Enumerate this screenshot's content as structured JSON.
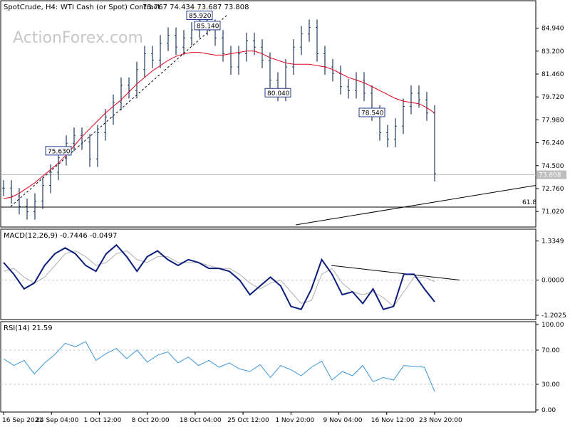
{
  "header": {
    "symbol": "SpotCrude, H4:",
    "description": "WTI Cash (or Spot) Contract",
    "ohlc": "73.767 74.434 73.687 73.808"
  },
  "watermark": "ActionForex.com",
  "colors": {
    "price_bars": "#1f3a5f",
    "sma": "#e0001b",
    "macd": "#0b1c7a",
    "signal": "#b0b0b0",
    "rsi": "#3a96d8",
    "grid": "#c8c8c8",
    "text": "#000000",
    "label_border": "#1f3a8a"
  },
  "chart_data": [
    {
      "type": "bar",
      "panel": "price",
      "ylim": [
        70.0,
        86.0
      ],
      "yticks": [
        "84.940",
        "83.200",
        "81.460",
        "79.720",
        "77.980",
        "76.240",
        "74.500",
        "72.760",
        "71.020"
      ],
      "current_price_label": "73.808",
      "fib_label": "61.8",
      "fib_level": 71.35,
      "series": [
        {
          "name": "",
          "values": [
            72.8,
            72.2,
            71.4,
            71.0,
            71.8,
            73.0,
            74.0,
            75.1,
            76.2,
            76.8,
            76.3,
            75.0,
            77.0,
            78.2,
            79.3,
            80.6,
            80.2,
            81.8,
            83.0,
            82.5,
            83.8,
            84.4,
            83.5,
            84.2,
            84.8,
            85.5,
            85.0,
            84.2,
            83.0,
            82.0,
            83.0,
            84.0,
            83.5,
            82.5,
            81.0,
            80.0,
            82.0,
            83.5,
            84.5,
            85.0,
            83.0,
            82.0,
            81.5,
            80.5,
            80.2,
            81.0,
            80.0,
            78.5,
            77.0,
            76.5,
            77.5,
            79.0,
            80.0,
            79.5,
            78.5,
            73.9
          ]
        },
        {
          "name": "",
          "values": [
            72.0,
            72.1,
            72.4,
            72.8,
            73.2,
            73.7,
            74.2,
            74.7,
            75.3,
            76.0,
            76.7,
            77.3,
            77.9,
            78.5,
            79.0,
            79.5,
            80.1,
            80.7,
            81.2,
            81.7,
            82.1,
            82.5,
            82.8,
            83.0,
            83.1,
            83.1,
            83.0,
            82.9,
            82.9,
            83.0,
            83.1,
            83.2,
            83.2,
            83.0,
            82.7,
            82.5,
            82.3,
            82.2,
            82.2,
            82.2,
            82.1,
            82.0,
            81.8,
            81.5,
            81.2,
            81.0,
            80.8,
            80.5,
            80.2,
            79.9,
            79.6,
            79.4,
            79.3,
            79.2,
            78.9,
            78.5
          ]
        }
      ],
      "annotations": [
        {
          "text": "85.920",
          "value": 85.92
        },
        {
          "text": "85.140",
          "value": 85.14
        },
        {
          "text": "78.540",
          "value": 78.54
        },
        {
          "text": "80.040",
          "value": 80.04
        },
        {
          "text": "75.630",
          "value": 75.63
        }
      ]
    },
    {
      "type": "line",
      "panel": "macd",
      "title": "MACD(12,26,9) -0.7446 -0.0497",
      "ylim": [
        -1.3,
        1.4
      ],
      "yticks": [
        "1.3349",
        "0.0000",
        "-1.2025"
      ],
      "series": [
        {
          "name": "",
          "values": [
            0.6,
            0.2,
            -0.3,
            -0.1,
            0.5,
            0.9,
            1.1,
            0.9,
            0.5,
            0.3,
            0.9,
            1.2,
            0.8,
            0.3,
            0.8,
            1.0,
            0.7,
            0.5,
            0.7,
            0.6,
            0.4,
            0.4,
            0.3,
            0.0,
            -0.5,
            -0.2,
            0.1,
            -0.2,
            -0.9,
            -1.0,
            -0.3,
            0.7,
            0.2,
            -0.5,
            -0.4,
            -0.8,
            -0.3,
            -1.0,
            -0.9,
            0.2,
            0.2,
            -0.3,
            -0.74
          ]
        },
        {
          "name": "",
          "values": [
            0.3,
            0.4,
            0.1,
            -0.1,
            0.1,
            0.5,
            0.9,
            1.0,
            0.8,
            0.5,
            0.6,
            0.9,
            1.0,
            0.7,
            0.6,
            0.8,
            0.8,
            0.6,
            0.6,
            0.6,
            0.5,
            0.4,
            0.4,
            0.2,
            -0.1,
            -0.3,
            -0.1,
            0.0,
            -0.4,
            -0.8,
            -0.7,
            0.2,
            0.4,
            -0.1,
            -0.4,
            -0.5,
            -0.4,
            -0.6,
            -0.9,
            -0.4,
            0.1,
            0.1,
            -0.05
          ]
        }
      ]
    },
    {
      "type": "line",
      "panel": "rsi",
      "title": "RSI(14) 21.59",
      "ylim": [
        0,
        100
      ],
      "yticks": [
        "100.00",
        "70.00",
        "30.00",
        "0.00"
      ],
      "series": [
        {
          "name": "",
          "values": [
            60,
            52,
            58,
            42,
            55,
            65,
            78,
            74,
            80,
            58,
            66,
            72,
            60,
            70,
            56,
            64,
            68,
            55,
            62,
            52,
            58,
            50,
            55,
            48,
            45,
            53,
            38,
            52,
            47,
            40,
            50,
            57,
            35,
            45,
            40,
            52,
            33,
            38,
            35,
            52,
            51,
            50,
            21.59
          ]
        }
      ]
    },
    {
      "type": "line",
      "panel": "time_axis",
      "categories": [
        "16 Sep 2021",
        "24 Sep 04:00",
        "1 Oct 12:00",
        "8 Oct 20:00",
        "18 Oct 04:00",
        "25 Oct 12:00",
        "1 Nov 20:00",
        "9 Nov 04:00",
        "16 Nov 12:00",
        "23 Nov 20:00"
      ]
    }
  ]
}
